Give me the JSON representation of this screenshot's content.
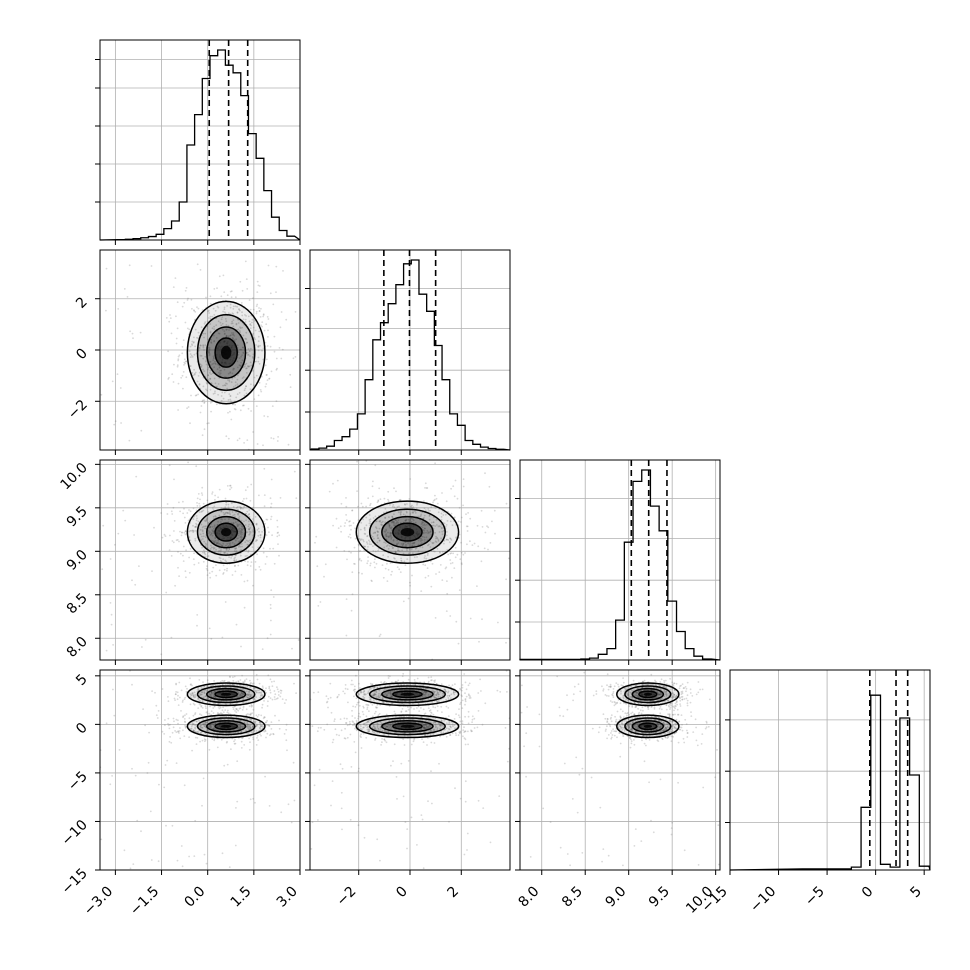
{
  "chart_data": {
    "type": "corner",
    "xlabel": "",
    "ylabel": "",
    "parameters": [
      {
        "range": [
          -3.5,
          3.0
        ],
        "ticks": [
          {
            "v": -3.0,
            "t": "−3.0"
          },
          {
            "v": -1.5,
            "t": "−1.5"
          },
          {
            "v": 0.0,
            "t": "0.0"
          },
          {
            "v": 1.5,
            "t": "1.5"
          },
          {
            "v": 3.0,
            "t": "3.0"
          }
        ],
        "hist_ticks": [
          0.2,
          0.4,
          0.6,
          0.8,
          0.95
        ],
        "quantiles": [
          0.05,
          0.68,
          1.3
        ],
        "hist_x": [
          -2.8,
          -2.55,
          -2.3,
          -2.05,
          -1.8,
          -1.55,
          -1.3,
          -1.05,
          -0.8,
          -0.55,
          -0.3,
          -0.05,
          0.2,
          0.45,
          0.7,
          0.95,
          1.2,
          1.45,
          1.7,
          1.95,
          2.2,
          2.45,
          2.7
        ],
        "hist": [
          0.002,
          0.004,
          0.007,
          0.012,
          0.018,
          0.03,
          0.06,
          0.1,
          0.2,
          0.5,
          0.66,
          0.85,
          0.97,
          1.0,
          0.92,
          0.88,
          0.76,
          0.56,
          0.43,
          0.26,
          0.12,
          0.05,
          0.02
        ]
      },
      {
        "range": [
          -3.9,
          3.9
        ],
        "ticks": [
          {
            "v": -2,
            "t": "−2"
          },
          {
            "v": 0,
            "t": "0"
          },
          {
            "v": 2,
            "t": "2"
          }
        ],
        "hist_ticks": [
          0.2,
          0.42,
          0.64,
          0.85
        ],
        "quantiles": [
          -1.02,
          -0.02,
          1.0
        ],
        "hist_x": [
          -3.7,
          -3.4,
          -3.1,
          -2.8,
          -2.5,
          -2.2,
          -1.9,
          -1.6,
          -1.3,
          -1.0,
          -0.7,
          -0.4,
          -0.1,
          0.2,
          0.5,
          0.8,
          1.1,
          1.4,
          1.7,
          2.0,
          2.3,
          2.6,
          2.9,
          3.2,
          3.5
        ],
        "hist": [
          0.005,
          0.01,
          0.02,
          0.05,
          0.07,
          0.11,
          0.19,
          0.37,
          0.58,
          0.67,
          0.77,
          0.87,
          0.98,
          1.0,
          0.82,
          0.73,
          0.55,
          0.37,
          0.19,
          0.13,
          0.05,
          0.03,
          0.015,
          0.008,
          0.004
        ]
      },
      {
        "range": [
          7.75,
          10.05
        ],
        "ticks": [
          {
            "v": 8.0,
            "t": "8.0"
          },
          {
            "v": 8.5,
            "t": "8.5"
          },
          {
            "v": 9.0,
            "t": "9.0"
          },
          {
            "v": 9.5,
            "t": "9.5"
          },
          {
            "v": 10.0,
            "t": "10.0"
          }
        ],
        "hist_ticks": [
          0.2,
          0.42,
          0.64,
          0.85
        ],
        "quantiles": [
          9.03,
          9.23,
          9.44
        ],
        "hist_x": [
          7.8,
          7.9,
          8.0,
          8.1,
          8.2,
          8.3,
          8.4,
          8.5,
          8.6,
          8.7,
          8.8,
          8.9,
          9.0,
          9.1,
          9.2,
          9.3,
          9.4,
          9.5,
          9.6,
          9.7,
          9.8,
          9.9
        ],
        "hist": [
          0.003,
          0.003,
          0.003,
          0.003,
          0.003,
          0.003,
          0.003,
          0.005,
          0.01,
          0.03,
          0.06,
          0.21,
          0.62,
          0.94,
          1.0,
          0.81,
          0.68,
          0.31,
          0.15,
          0.06,
          0.02,
          0.005
        ]
      },
      {
        "range": [
          -15,
          5.6
        ],
        "ticks": [
          {
            "v": -15,
            "t": "−15"
          },
          {
            "v": -10,
            "t": "−10"
          },
          {
            "v": -5,
            "t": "−5"
          },
          {
            "v": 0,
            "t": "0"
          },
          {
            "v": 5,
            "t": "5"
          }
        ],
        "yticks": [
          {
            "v": -15,
            "t": "−15"
          },
          {
            "v": -10,
            "t": "−10"
          },
          {
            "v": -5,
            "t": "−5"
          },
          {
            "v": 0,
            "t": "0"
          },
          {
            "v": 5,
            "t": "5"
          }
        ],
        "hist_ticks": [
          0.25,
          0.52,
          0.79
        ],
        "quantiles": [
          -0.6,
          2.1,
          3.3
        ],
        "hist_x": [
          -7.0,
          -6.0,
          -5.0,
          -4.0,
          -3.0,
          -2.0,
          -1.0,
          0.0,
          1.0,
          2.0,
          3.0,
          4.0,
          5.0
        ],
        "hist": [
          0.006,
          0.006,
          0.006,
          0.006,
          0.006,
          0.015,
          0.33,
          0.92,
          0.03,
          0.015,
          0.8,
          0.5,
          0.02
        ]
      }
    ],
    "pairs": [
      {
        "x": 0,
        "y": 1,
        "blobs": [
          {
            "cx": 0.6,
            "cy": -0.1,
            "sx": 0.6,
            "sy": 0.95
          }
        ]
      },
      {
        "x": 0,
        "y": 2,
        "blobs": [
          {
            "cx": 0.6,
            "cy": 9.22,
            "sx": 0.6,
            "sy": 0.17
          }
        ]
      },
      {
        "x": 1,
        "y": 2,
        "blobs": [
          {
            "cx": -0.1,
            "cy": 9.22,
            "sx": 0.95,
            "sy": 0.17
          }
        ]
      },
      {
        "x": 0,
        "y": 3,
        "blobs": [
          {
            "cx": 0.6,
            "cy": 3.1,
            "sx": 0.6,
            "sy": 0.55
          },
          {
            "cx": 0.6,
            "cy": -0.2,
            "sx": 0.6,
            "sy": 0.55
          }
        ]
      },
      {
        "x": 1,
        "y": 3,
        "blobs": [
          {
            "cx": -0.1,
            "cy": 3.1,
            "sx": 0.95,
            "sy": 0.55
          },
          {
            "cx": -0.1,
            "cy": -0.2,
            "sx": 0.95,
            "sy": 0.55
          }
        ]
      },
      {
        "x": 2,
        "y": 3,
        "blobs": [
          {
            "cx": 9.22,
            "cy": 3.1,
            "sx": 0.17,
            "sy": 0.55
          },
          {
            "cx": 9.22,
            "cy": -0.2,
            "sx": 0.17,
            "sy": 0.55
          }
        ]
      }
    ]
  }
}
